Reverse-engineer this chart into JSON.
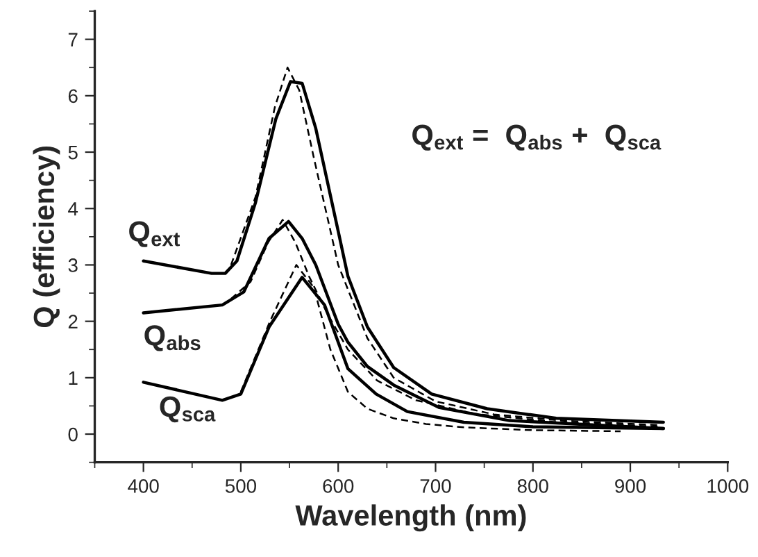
{
  "chart_data": {
    "type": "line",
    "xlabel": "Wavelength (nm)",
    "ylabel": "Q (efficiency)",
    "xlim": [
      350,
      1000
    ],
    "xticks": [
      400,
      500,
      600,
      700,
      800,
      900,
      1000
    ],
    "ylim": [
      -0.5,
      7.5
    ],
    "yticks": [
      0,
      1,
      2,
      3,
      4,
      5,
      6,
      7
    ],
    "annotations": [
      "Q$_{ext}$ =  Q$_{abs}$ +  Q$_{sca}$"
    ],
    "grid": false,
    "legend": false,
    "series": [
      {
        "name": "Q$_{ext}$",
        "color": "#000000",
        "line_style": "solid",
        "x": [
          400,
          470,
          484,
          496,
          515,
          536,
          551,
          563,
          577,
          600,
          610,
          630,
          657,
          696,
          753,
          824,
          934
        ],
        "values": [
          3.07,
          2.85,
          2.85,
          3.07,
          4.1,
          5.59,
          6.25,
          6.22,
          5.42,
          3.6,
          2.8,
          1.9,
          1.18,
          0.71,
          0.45,
          0.28,
          0.21
        ]
      },
      {
        "color": "#000000",
        "line_style": "dashed",
        "x": [
          490,
          515,
          535,
          548,
          560,
          575,
          600,
          630,
          657,
          700,
          760,
          830,
          930
        ],
        "values": [
          3.0,
          4.2,
          5.8,
          6.5,
          6.1,
          4.9,
          3.0,
          1.7,
          1.0,
          0.58,
          0.35,
          0.24,
          0.16
        ]
      },
      {
        "name": "Q$_{abs}$",
        "color": "#000000",
        "line_style": "solid",
        "x": [
          400,
          481,
          503,
          529,
          549,
          563,
          577,
          600,
          610,
          630,
          657,
          704,
          776,
          934
        ],
        "values": [
          2.15,
          2.29,
          2.52,
          3.47,
          3.77,
          3.47,
          3.0,
          1.95,
          1.63,
          1.2,
          0.87,
          0.47,
          0.24,
          0.1
        ]
      },
      {
        "color": "#000000",
        "line_style": "dashed",
        "x": [
          490,
          510,
          528,
          543,
          556,
          570,
          590,
          610,
          640,
          680,
          740,
          820,
          930
        ],
        "values": [
          2.4,
          2.7,
          3.4,
          3.8,
          3.4,
          2.8,
          2.1,
          1.5,
          0.95,
          0.6,
          0.36,
          0.22,
          0.13
        ]
      },
      {
        "name": "Q$_{sca}$",
        "color": "#000000",
        "line_style": "solid",
        "x": [
          400,
          481,
          500,
          529,
          563,
          586,
          610,
          639,
          671,
          729,
          800,
          934
        ],
        "values": [
          0.92,
          0.6,
          0.71,
          1.9,
          2.78,
          2.29,
          1.16,
          0.71,
          0.4,
          0.21,
          0.13,
          0.1
        ]
      },
      {
        "color": "#000000",
        "line_style": "dashed",
        "x": [
          500,
          530,
          557,
          575,
          592,
          610,
          630,
          657,
          690,
          729,
          800,
          890
        ],
        "values": [
          0.75,
          2.0,
          3.0,
          2.6,
          1.5,
          0.75,
          0.45,
          0.28,
          0.18,
          0.12,
          0.07,
          0.05
        ]
      }
    ]
  }
}
